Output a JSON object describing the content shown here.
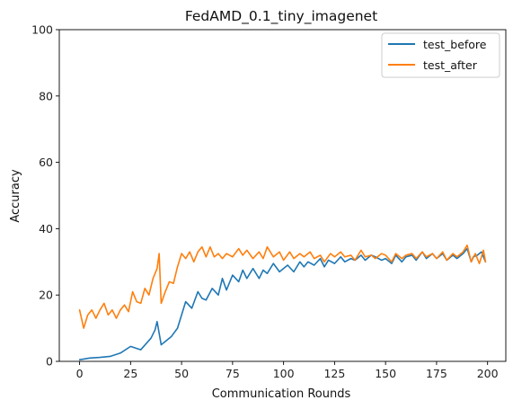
{
  "chart_data": {
    "type": "line",
    "title": "FedAMD_0.1_tiny_imagenet",
    "xlabel": "Communication Rounds",
    "ylabel": "Accuracy",
    "xlim": [
      -9.95,
      208.95
    ],
    "ylim": [
      0,
      100
    ],
    "xticks": [
      0,
      25,
      50,
      75,
      100,
      125,
      150,
      175,
      200
    ],
    "yticks": [
      0,
      20,
      40,
      60,
      80,
      100
    ],
    "grid": false,
    "legend_position": "upper right",
    "series": [
      {
        "name": "test_before",
        "color": "#1f77b4",
        "x": [
          0,
          5,
          10,
          15,
          20,
          25,
          30,
          35,
          37,
          38,
          40,
          42,
          45,
          48,
          50,
          52,
          55,
          58,
          60,
          62,
          65,
          68,
          70,
          72,
          75,
          78,
          80,
          82,
          85,
          88,
          90,
          92,
          95,
          98,
          100,
          102,
          105,
          108,
          110,
          112,
          115,
          118,
          120,
          122,
          125,
          128,
          130,
          133,
          135,
          138,
          140,
          143,
          145,
          148,
          150,
          153,
          155,
          158,
          160,
          163,
          165,
          168,
          170,
          173,
          175,
          178,
          180,
          183,
          185,
          188,
          190,
          192,
          193,
          195,
          197,
          199
        ],
        "y": [
          0.5,
          1.0,
          1.2,
          1.5,
          2.5,
          4.5,
          3.5,
          7.0,
          9.5,
          12.0,
          5.0,
          6.0,
          7.5,
          10.0,
          14.0,
          18.0,
          16.0,
          21.0,
          19.0,
          18.5,
          22.0,
          20.0,
          25.0,
          21.5,
          26.0,
          24.0,
          27.5,
          25.0,
          28.0,
          25.0,
          27.5,
          26.5,
          29.5,
          27.0,
          28.0,
          29.0,
          27.0,
          30.0,
          28.5,
          30.0,
          29.0,
          31.0,
          28.5,
          30.5,
          29.5,
          31.5,
          30.0,
          31.0,
          30.5,
          32.0,
          30.5,
          32.0,
          31.5,
          30.5,
          31.0,
          29.5,
          32.0,
          30.0,
          31.5,
          32.0,
          30.5,
          33.0,
          31.0,
          32.5,
          31.0,
          32.5,
          30.5,
          32.0,
          31.0,
          32.5,
          34.0,
          30.0,
          31.5,
          32.0,
          33.0,
          30.0
        ]
      },
      {
        "name": "test_after",
        "color": "#ff7f0e",
        "x": [
          0,
          2,
          4,
          6,
          8,
          10,
          12,
          14,
          16,
          18,
          20,
          22,
          24,
          26,
          28,
          30,
          32,
          34,
          36,
          38,
          39,
          40,
          42,
          44,
          46,
          48,
          50,
          52,
          54,
          56,
          58,
          60,
          62,
          64,
          66,
          68,
          70,
          72,
          75,
          78,
          80,
          82,
          85,
          88,
          90,
          92,
          95,
          98,
          100,
          103,
          105,
          108,
          110,
          113,
          115,
          118,
          120,
          123,
          125,
          128,
          130,
          133,
          135,
          138,
          140,
          143,
          145,
          148,
          150,
          153,
          155,
          158,
          160,
          163,
          165,
          168,
          170,
          173,
          175,
          178,
          180,
          183,
          185,
          188,
          190,
          192,
          194,
          196,
          198,
          199
        ],
        "y": [
          15.5,
          10.0,
          14.0,
          15.5,
          13.0,
          15.5,
          17.5,
          14.0,
          15.5,
          13.0,
          15.5,
          17.0,
          15.0,
          21.0,
          18.0,
          17.5,
          22.0,
          20.0,
          25.0,
          28.0,
          32.5,
          17.5,
          21.0,
          24.0,
          23.5,
          28.5,
          32.5,
          31.0,
          33.0,
          30.0,
          33.0,
          34.5,
          31.5,
          34.5,
          31.5,
          32.5,
          31.0,
          32.5,
          31.5,
          34.0,
          32.0,
          33.5,
          31.0,
          33.0,
          31.0,
          34.5,
          31.5,
          33.0,
          30.5,
          33.0,
          31.0,
          32.5,
          31.5,
          33.0,
          31.0,
          32.0,
          30.0,
          32.5,
          31.5,
          33.0,
          31.5,
          32.0,
          30.5,
          33.5,
          31.5,
          32.0,
          31.0,
          32.5,
          32.0,
          30.0,
          32.5,
          31.0,
          32.0,
          32.5,
          31.0,
          33.0,
          31.5,
          32.5,
          31.0,
          33.0,
          30.5,
          32.5,
          31.5,
          33.0,
          35.0,
          30.0,
          32.5,
          29.5,
          33.5,
          30.0
        ]
      }
    ]
  }
}
